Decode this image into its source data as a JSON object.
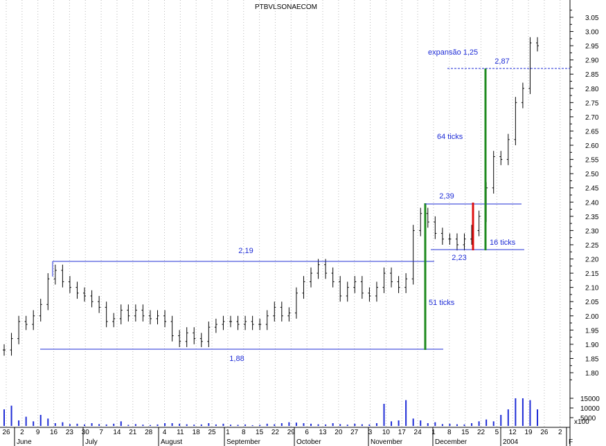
{
  "chart_data": {
    "type": "ohlc",
    "title": "PTBVLSONAECOM",
    "ylim": [
      1.75,
      3.1
    ],
    "y_ticks": [
      1.8,
      1.85,
      1.9,
      1.95,
      2.0,
      2.05,
      2.1,
      2.15,
      2.2,
      2.25,
      2.3,
      2.35,
      2.4,
      2.45,
      2.5,
      2.55,
      2.6,
      2.65,
      2.7,
      2.75,
      2.8,
      2.85,
      2.9,
      2.95,
      3.0,
      3.05
    ],
    "y_tick_labels": [
      "1.80",
      "1.85",
      "1.90",
      "1.95",
      "2.00",
      "2.05",
      "2.10",
      "2.15",
      "2.20",
      "2.25",
      "2.30",
      "2.35",
      "2.40",
      "2.45",
      "2.50",
      "2.55",
      "2.60",
      "2.65",
      "2.70",
      "2.75",
      "2.80",
      "2.85",
      "2.90",
      "2.95",
      "3.00",
      "3.05"
    ],
    "volume_ticks": [
      "15000",
      "10000",
      "5000"
    ],
    "volume_unit": "x100",
    "x_day_labels": [
      "26",
      "2",
      "9",
      "16",
      "23",
      "30",
      "7",
      "14",
      "21",
      "28",
      "4",
      "11",
      "18",
      "25",
      "1",
      "8",
      "15",
      "22",
      "29",
      "6",
      "13",
      "20",
      "27",
      "3",
      "10",
      "17",
      "24",
      "1",
      "8",
      "15",
      "22",
      "5",
      "12",
      "19",
      "26",
      "2"
    ],
    "x_month_labels": [
      "June",
      "July",
      "August",
      "September",
      "October",
      "November",
      "December",
      "2004",
      "F"
    ],
    "grid": true,
    "levels": {
      "range_top": 2.19,
      "range_bottom": 1.88,
      "box_top": 2.39,
      "box_bottom": 2.23,
      "target": 2.87
    },
    "annotations": {
      "range_top": "2,19",
      "range_bottom": "1,88",
      "box_top": "2,39",
      "box_bottom": "2,23",
      "target": "2,87",
      "expansion": "expansão 1,25",
      "ticks_51": "51 ticks",
      "ticks_16": "16 ticks",
      "ticks_64": "64 ticks"
    },
    "close_series": [
      1.88,
      1.92,
      1.98,
      1.97,
      2.0,
      2.04,
      2.13,
      2.16,
      2.12,
      2.1,
      2.08,
      2.07,
      2.05,
      2.03,
      1.98,
      1.99,
      2.02,
      2.0,
      2.02,
      2.0,
      1.99,
      2.0,
      1.98,
      1.93,
      1.91,
      1.94,
      1.92,
      1.91,
      1.96,
      1.97,
      1.98,
      1.98,
      1.97,
      1.98,
      1.97,
      1.97,
      2.0,
      2.03,
      2.0,
      2.01,
      2.08,
      2.12,
      2.15,
      2.18,
      2.15,
      2.12,
      2.07,
      2.1,
      2.12,
      2.08,
      2.07,
      2.1,
      2.15,
      2.12,
      2.1,
      2.13,
      2.3,
      2.36,
      2.33,
      2.29,
      2.27,
      2.27,
      2.25,
      2.27,
      2.3,
      2.35,
      2.45,
      2.56,
      2.55,
      2.62,
      2.75,
      2.8,
      2.96,
      2.95
    ],
    "volume_series": [
      9000,
      11000,
      3000,
      5000,
      2500,
      6000,
      4000,
      1500,
      2000,
      1000,
      1200,
      800,
      1500,
      1000,
      800,
      1200,
      2500,
      600,
      1000,
      700,
      500,
      800,
      1500,
      1500,
      1200,
      900,
      700,
      800,
      1500,
      800,
      1200,
      700,
      600,
      800,
      400,
      600,
      1200,
      900,
      1500,
      2000,
      1800,
      1500,
      1200,
      900,
      800,
      1500,
      1000,
      700,
      1200,
      900,
      800,
      1500,
      12000,
      2500,
      3000,
      14000,
      4000,
      3000,
      1500,
      2000,
      1000,
      1200,
      900,
      800,
      1500,
      2500,
      3500,
      2500,
      6000,
      9000,
      15000,
      15000,
      14000,
      9000
    ]
  }
}
